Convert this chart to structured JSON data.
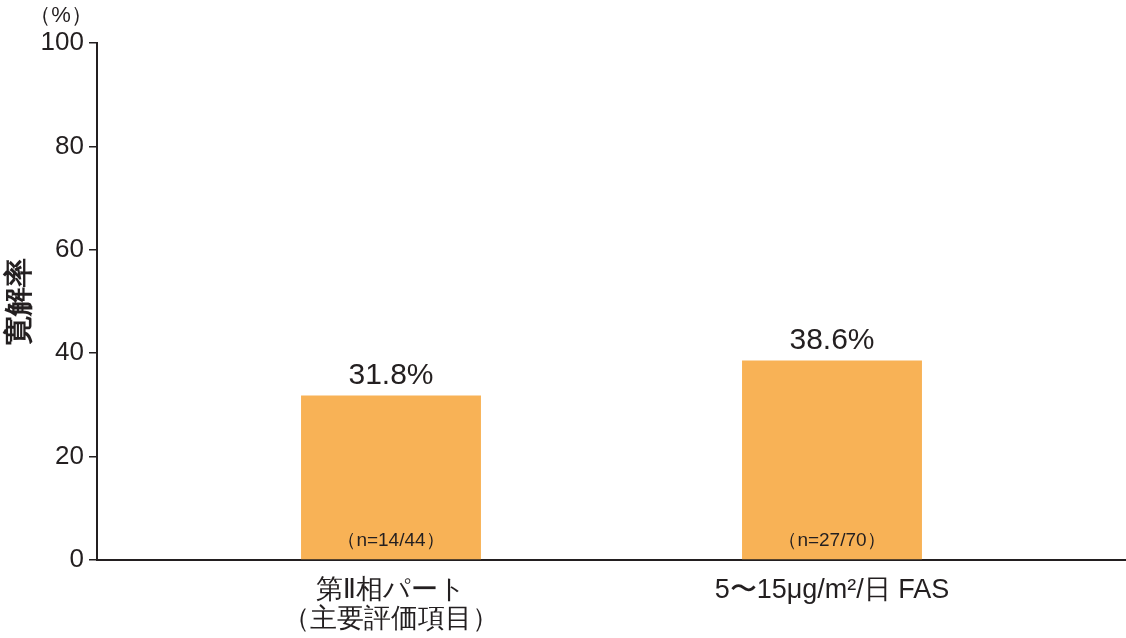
{
  "chart_data": {
    "type": "bar",
    "ylabel": "寛解率",
    "categories": [
      "第Ⅱ相パート（主要評価項目）",
      "5〜15μg/m²/日 FAS"
    ],
    "values": [
      31.8,
      38.6
    ],
    "color": "#f8b256",
    "ylim": [
      0,
      100
    ],
    "yticks": [
      0,
      20,
      40,
      60,
      80,
      100
    ],
    "value_labels": [
      "31.8%",
      "38.6%"
    ],
    "annotations": [
      "（%）",
      "（n=14/44）",
      "（n=27/70）"
    ]
  }
}
